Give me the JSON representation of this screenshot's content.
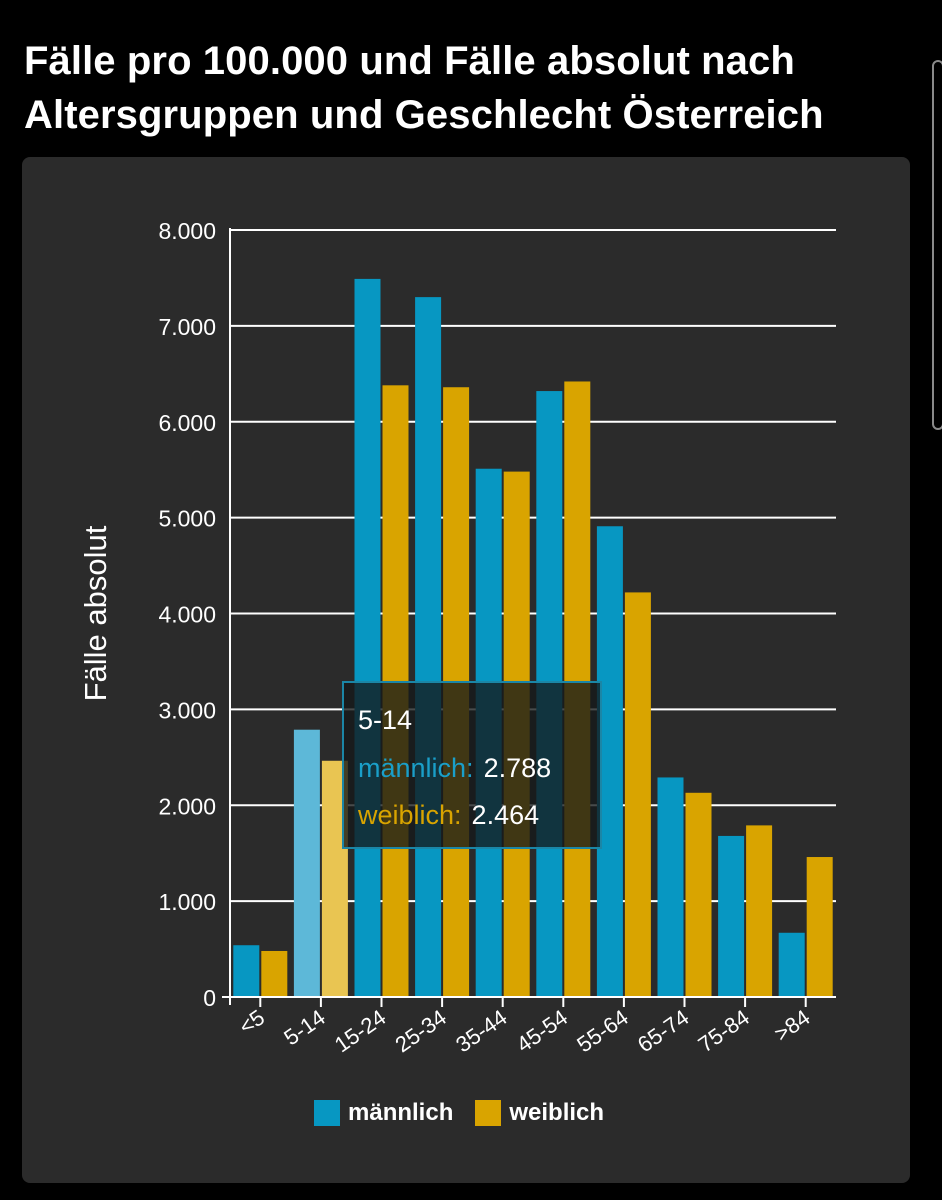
{
  "page": {
    "title": "Fälle pro 100.000 und Fälle absolut nach Altersgruppen und Geschlecht Österreich"
  },
  "chart_data": {
    "type": "bar",
    "title": "",
    "xlabel": "",
    "ylabel": "Fälle absolut",
    "ylim": [
      0,
      8000
    ],
    "yticks": [
      0,
      1000,
      2000,
      3000,
      4000,
      5000,
      6000,
      7000,
      8000
    ],
    "ytick_labels": [
      "0",
      "1.000",
      "2.000",
      "3.000",
      "4.000",
      "5.000",
      "6.000",
      "7.000",
      "8.000"
    ],
    "categories": [
      "<5",
      "5-14",
      "15-24",
      "25-34",
      "35-44",
      "45-54",
      "55-64",
      "65-74",
      "75-84",
      ">84"
    ],
    "series": [
      {
        "name": "männlich",
        "color": "#0797c2",
        "highlight_color": "#5db8d8",
        "values": [
          540,
          2788,
          7490,
          7300,
          5510,
          6320,
          4910,
          2290,
          1680,
          670
        ]
      },
      {
        "name": "weiblich",
        "color": "#d9a400",
        "highlight_color": "#e9c552",
        "values": [
          480,
          2464,
          6380,
          6360,
          5480,
          6420,
          4220,
          2130,
          1790,
          1460
        ]
      }
    ],
    "highlighted_category": "5-14",
    "grid": "horizontal",
    "legend_position": "bottom-center",
    "tooltip": {
      "category": "5-14",
      "male_label": "männlich:",
      "male_value": "2.788",
      "female_label": "weiblich:",
      "female_value": "2.464"
    }
  },
  "colors": {
    "background": "#000000",
    "card": "#2b2b2b",
    "male": "#0797c2",
    "female": "#d9a400",
    "tooltip_border": "#1b86a6"
  }
}
